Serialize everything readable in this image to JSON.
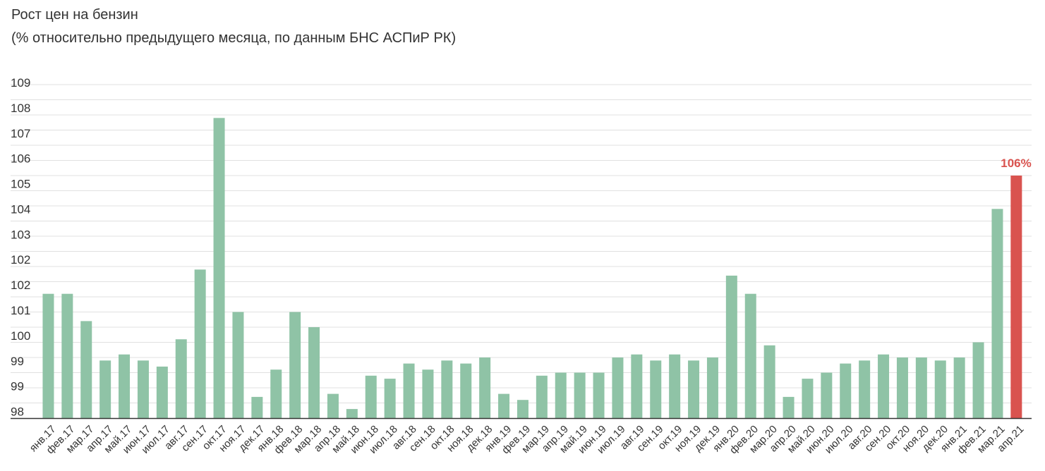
{
  "chart_data": {
    "type": "bar",
    "title": "Рост цен на бензин",
    "subtitle": "(% относительно предыдущего месяца, по данным БНС АСПиР РК)",
    "xlabel": "",
    "ylabel": "",
    "y_ticks": [
      "98",
      "99",
      "99",
      "100",
      "101",
      "102",
      "102",
      "103",
      "104",
      "105",
      "106",
      "107",
      "108",
      "109"
    ],
    "ylim": [
      98,
      109
    ],
    "grid": true,
    "legend": "none",
    "bar_color": "#8fc3a6",
    "highlight_color": "#d9534f",
    "axis_color": "#333333",
    "grid_color": "#e0e0e0",
    "categories": [
      "янв.17",
      "фев.17",
      "мар.17",
      "апр.17",
      "май.17",
      "июн.17",
      "июл.17",
      "авг.17",
      "сен.17",
      "окт.17",
      "ноя.17",
      "дек.17",
      "янв.18",
      "фев.18",
      "мар.18",
      "апр.18",
      "май.18",
      "июн.18",
      "июл.18",
      "авг.18",
      "сен.18",
      "окт.18",
      "ноя.18",
      "дек.18",
      "янв.19",
      "фев.19",
      "мар.19",
      "апр.19",
      "май.19",
      "июн.19",
      "июл.19",
      "авг.19",
      "сен.19",
      "окт.19",
      "ноя.19",
      "дек.19",
      "янв.20",
      "фев.20",
      "мар.20",
      "апр.20",
      "май.20",
      "июн.20",
      "июл.20",
      "авг.20",
      "сен.20",
      "окт.20",
      "ноя.20",
      "дек.20",
      "янв.21",
      "фев.21",
      "мар.21",
      "апр.21"
    ],
    "values": [
      102.1,
      102.1,
      101.2,
      99.9,
      100.1,
      99.9,
      99.7,
      100.6,
      102.9,
      107.9,
      101.5,
      98.7,
      99.6,
      101.5,
      101.0,
      98.8,
      98.3,
      99.4,
      99.3,
      99.8,
      99.6,
      99.9,
      99.8,
      100.0,
      98.8,
      98.6,
      99.4,
      99.5,
      99.5,
      99.5,
      100.0,
      100.1,
      99.9,
      100.1,
      99.9,
      100.0,
      102.7,
      102.1,
      100.4,
      98.7,
      99.3,
      99.5,
      99.8,
      99.9,
      100.1,
      100.0,
      100.0,
      99.9,
      100.0,
      100.5,
      104.9,
      106.0
    ],
    "highlight_index": 51,
    "annotations": [
      {
        "category": "апр.21",
        "text": "106%"
      }
    ]
  }
}
